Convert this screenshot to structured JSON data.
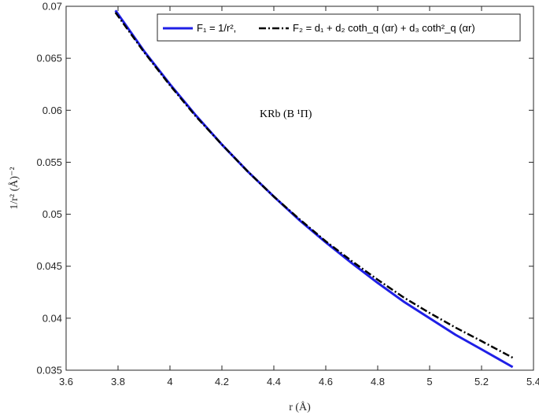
{
  "chart_data": {
    "type": "line",
    "xlabel": "r (Å)",
    "ylabel": "1/r² (Å)⁻²",
    "xlim": [
      3.6,
      5.4
    ],
    "ylim": [
      0.035,
      0.07
    ],
    "x_ticks": [
      "3.6",
      "3.8",
      "4",
      "4.2",
      "4.4",
      "4.6",
      "4.8",
      "5",
      "5.2",
      "5.4"
    ],
    "y_ticks": [
      "0.035",
      "0.04",
      "0.045",
      "0.05",
      "0.055",
      "0.06",
      "0.065",
      "0.07"
    ],
    "grid": false,
    "legend_position": "top",
    "annotation": "KRb (B ¹Π)",
    "series": [
      {
        "name": "F₁ = 1/r²,",
        "color": "#1f1fe6",
        "style": "solid",
        "x": [
          3.79,
          3.9,
          4.0,
          4.1,
          4.2,
          4.3,
          4.4,
          4.5,
          4.6,
          4.7,
          4.8,
          4.9,
          5.0,
          5.1,
          5.2,
          5.32
        ],
        "y": [
          0.0696,
          0.0657,
          0.0625,
          0.0595,
          0.0567,
          0.0541,
          0.0517,
          0.0494,
          0.0473,
          0.0453,
          0.0434,
          0.0416,
          0.04,
          0.0384,
          0.037,
          0.0353
        ]
      },
      {
        "name": "F₂ = d₁ + d₂ coth_q (αr) + d₃ coth²_q (αr)",
        "color": "#000000",
        "style": "dashdot",
        "x": [
          3.79,
          3.9,
          4.0,
          4.1,
          4.2,
          4.3,
          4.4,
          4.5,
          4.6,
          4.7,
          4.8,
          4.9,
          5.0,
          5.1,
          5.2,
          5.32
        ],
        "y": [
          0.0694,
          0.0656,
          0.0624,
          0.0594,
          0.0567,
          0.0541,
          0.0517,
          0.0495,
          0.0474,
          0.0455,
          0.0437,
          0.042,
          0.0405,
          0.0391,
          0.0378,
          0.0362
        ]
      }
    ]
  }
}
